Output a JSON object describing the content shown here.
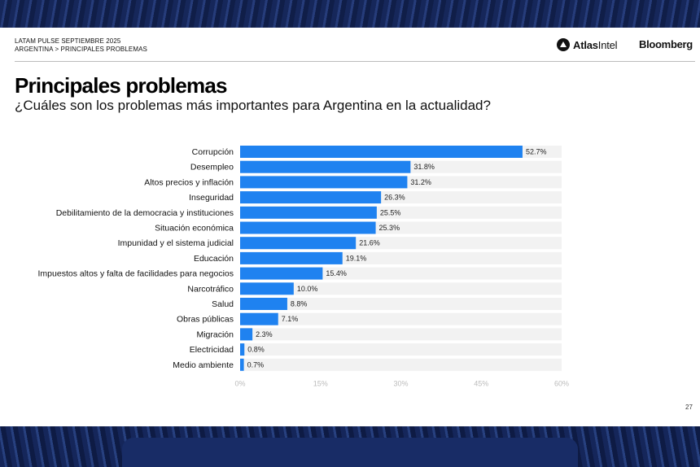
{
  "header": {
    "kicker_line1": "LATAM PULSE SEPTIEMBRE 2025",
    "kicker_line2": "ARGENTINA > PRINCIPALES PROBLEMAS",
    "brand_atlas_a": "Atlas",
    "brand_atlas_b": "Intel",
    "brand_bloomberg": "Bloomberg"
  },
  "page_number": "27",
  "colors": {
    "bar": "#1f82f0",
    "track": "#f2f2f2",
    "axis_text": "#bbbbbb"
  },
  "chart_data": {
    "type": "bar",
    "orientation": "horizontal",
    "title": "Principales problemas",
    "subtitle": "¿Cuáles son los problemas más importantes para Argentina en la actualidad?",
    "categories": [
      "Corrupción",
      "Desempleo",
      "Altos precios y inflación",
      "Inseguridad",
      "Debilitamiento de la democracia y instituciones",
      "Situación económica",
      "Impunidad y el sistema judicial",
      "Educación",
      "Impuestos altos y falta de facilidades para negocios",
      "Narcotráfico",
      "Salud",
      "Obras públicas",
      "Migración",
      "Electricidad",
      "Medio ambiente"
    ],
    "values": [
      52.7,
      31.8,
      31.2,
      26.3,
      25.5,
      25.3,
      21.6,
      19.1,
      15.4,
      10.0,
      8.8,
      7.1,
      2.3,
      0.8,
      0.7
    ],
    "value_labels": [
      "52.7%",
      "31.8%",
      "31.2%",
      "26.3%",
      "25.5%",
      "25.3%",
      "21.6%",
      "19.1%",
      "15.4%",
      "10.0%",
      "8.8%",
      "7.1%",
      "2.3%",
      "0.8%",
      "0.7%"
    ],
    "xlim": [
      0,
      60
    ],
    "xticks": [
      0,
      15,
      30,
      45,
      60
    ],
    "xtick_labels": [
      "0%",
      "15%",
      "30%",
      "45%",
      "60%"
    ]
  }
}
